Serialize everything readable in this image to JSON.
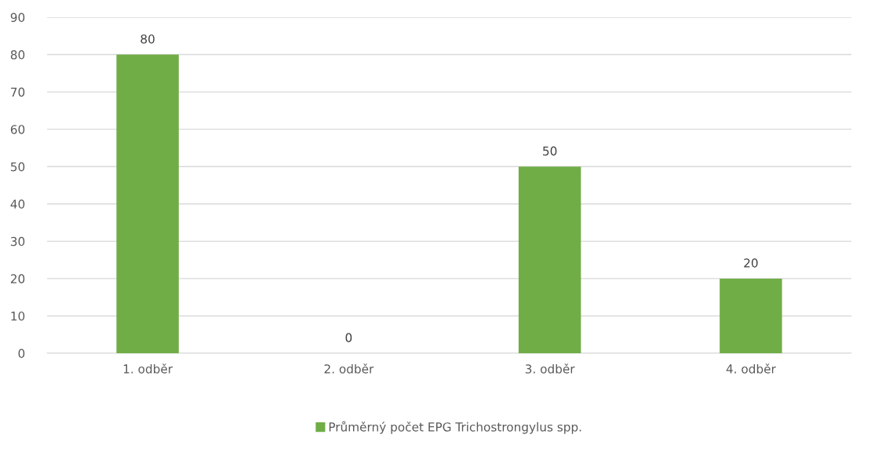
{
  "chart_data": {
    "type": "bar",
    "categories": [
      "1. odběr",
      "2. odběr",
      "3. odběr",
      "4. odběr"
    ],
    "series": [
      {
        "name": "Průměrný počet EPG Trichostrongylus spp.",
        "color": "#70ad47",
        "values": [
          80,
          0,
          50,
          20
        ]
      }
    ],
    "ylim": [
      0,
      90
    ],
    "yticks": [
      0,
      10,
      20,
      30,
      40,
      50,
      60,
      70,
      80,
      90
    ],
    "grid": "y",
    "legend": "bottom",
    "data_labels": true
  }
}
